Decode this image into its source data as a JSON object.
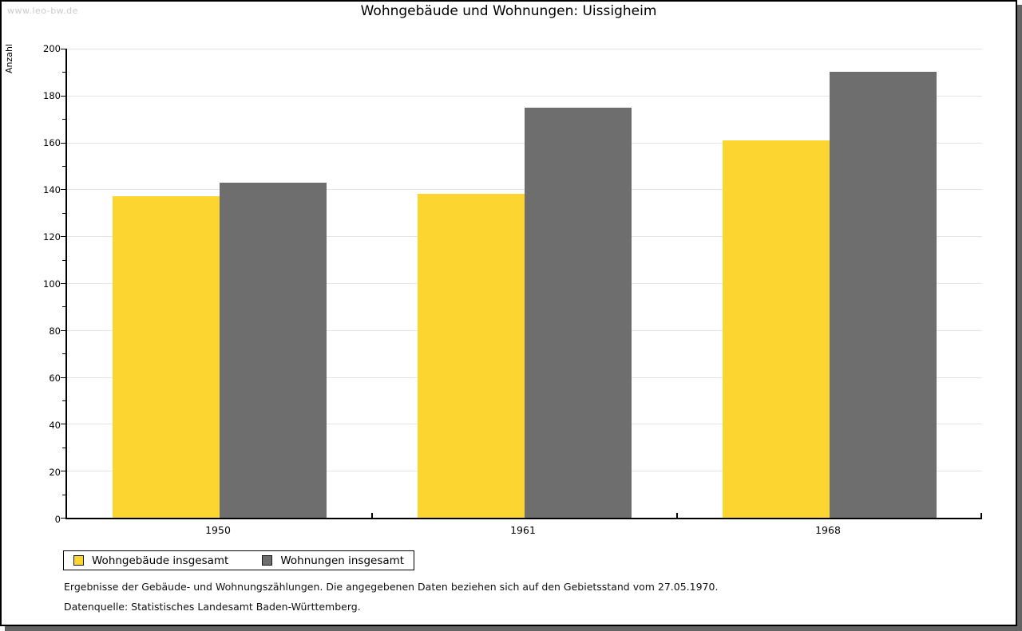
{
  "watermark": "www.leo-bw.de",
  "title": "Wohngebäude und Wohnungen: Uissigheim",
  "footer": {
    "line1": "Ergebnisse der Gebäude- und Wohnungszählungen. Die angegebenen Daten beziehen sich auf den Gebietsstand vom 27.05.1970.",
    "line2": "Datenquelle: Statistisches Landesamt Baden-Württemberg."
  },
  "colors": {
    "series1": "#fdd531",
    "series2": "#6e6e6e",
    "gridline": "#e4e4e4",
    "axis": "#000000",
    "watermark": "#cbcbcb",
    "frame_shadow": "#636363"
  },
  "chart_data": {
    "type": "bar",
    "title": "Wohngebäude und Wohnungen: Uissigheim",
    "categories": [
      "1950",
      "1961",
      "1968"
    ],
    "series": [
      {
        "name": "Wohngebäude insgesamt",
        "color": "#fdd531",
        "values": [
          137,
          138,
          161
        ]
      },
      {
        "name": "Wohnungen insgesamt",
        "color": "#6e6e6e",
        "values": [
          143,
          175,
          190
        ]
      }
    ],
    "xlabel": "",
    "ylabel": "Anzahl",
    "ylim": [
      0,
      200
    ],
    "ytick_step": 20,
    "minor_tick_step": 10,
    "grid": true,
    "legend_position": "bottom-left"
  }
}
